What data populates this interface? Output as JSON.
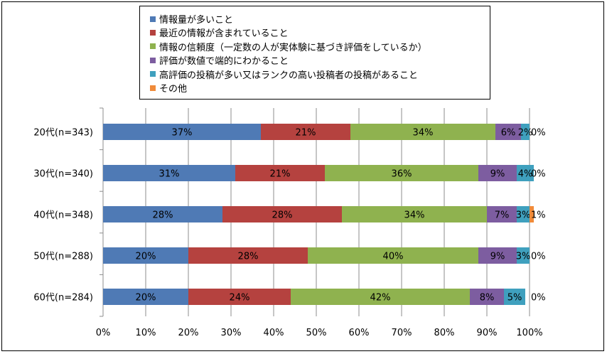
{
  "chart_data": {
    "type": "bar",
    "orientation": "horizontal",
    "stacked": true,
    "categories": [
      "20代(n=343)",
      "30代(n=340)",
      "40代(n=348)",
      "50代(n=288)",
      "60代(n=284)"
    ],
    "series": [
      {
        "name": "情報量が多いこと",
        "color": "#4F7AB5",
        "values": [
          37,
          31,
          28,
          20,
          20
        ],
        "labels": [
          "37%",
          "31%",
          "28%",
          "20%",
          "20%"
        ]
      },
      {
        "name": "最近の情報が含まれていること",
        "color": "#B5423F",
        "values": [
          21,
          21,
          28,
          28,
          24
        ],
        "labels": [
          "21%",
          "21%",
          "28%",
          "28%",
          "24%"
        ]
      },
      {
        "name": "情報の信頼度（一定数の人が実体験に基づき評価をしているか）",
        "color": "#8FB24F",
        "values": [
          34,
          36,
          34,
          40,
          42
        ],
        "labels": [
          "34%",
          "36%",
          "34%",
          "40%",
          "42%"
        ]
      },
      {
        "name": "評価が数値で端的にわかること",
        "color": "#7D5DA0",
        "values": [
          6,
          9,
          7,
          9,
          8
        ],
        "labels": [
          "6%",
          "9%",
          "7%",
          "9%",
          "8%"
        ]
      },
      {
        "name": "高評価の投稿が多い又はランクの高い投稿者の投稿があること",
        "color": "#3FA0BE",
        "values": [
          2,
          4,
          3,
          3,
          5
        ],
        "labels": [
          "2%",
          "4%",
          "3%",
          "3%",
          "5%"
        ]
      },
      {
        "name": "その他",
        "color": "#F08B3A",
        "values": [
          0,
          0,
          1,
          0,
          0
        ],
        "labels": [
          "0%",
          "0%",
          "1%",
          "0%",
          "0%"
        ]
      }
    ],
    "x_ticks": [
      "0%",
      "10%",
      "20%",
      "30%",
      "40%",
      "50%",
      "60%",
      "70%",
      "80%",
      "90%",
      "100%"
    ],
    "xlim": [
      0,
      100
    ],
    "grid": true,
    "legend_position": "top"
  }
}
